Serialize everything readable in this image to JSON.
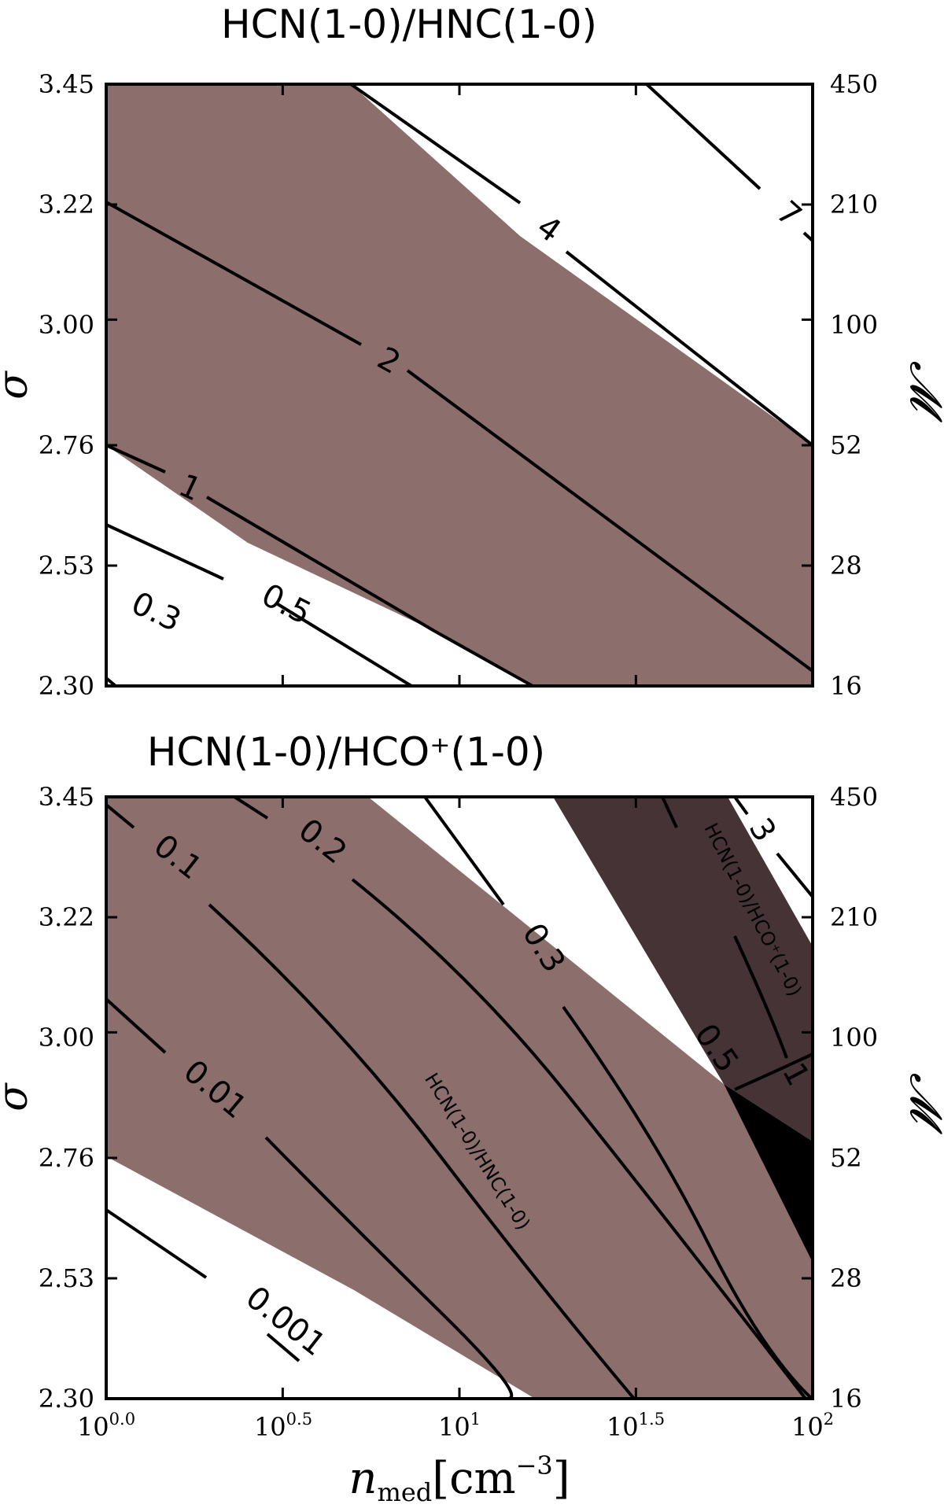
{
  "chart_data": [
    {
      "type": "contour",
      "title": "HCN(1-0)/HNC(1-0)",
      "xlabel": "",
      "ylabel": "σ",
      "y2label": "𝓜",
      "x_axis": {
        "scale": "log",
        "range": [
          1,
          100
        ],
        "ticks": [
          1,
          3.16,
          10,
          31.6,
          100
        ],
        "tick_labels": [],
        "unit": "cm^-3"
      },
      "y_axis": {
        "range": [
          2.3,
          3.45
        ],
        "ticks": [
          2.3,
          2.53,
          2.76,
          3.0,
          3.22,
          3.45
        ],
        "tick_labels": [
          "2.30",
          "2.53",
          "2.76",
          "3.00",
          "3.22",
          "3.45"
        ]
      },
      "y2_axis": {
        "tick_labels": [
          "16",
          "28",
          "52",
          "100",
          "210",
          "450"
        ]
      },
      "shaded_region": {
        "between_levels": [
          1,
          4
        ],
        "color": "#8c6e6d"
      },
      "contours": [
        {
          "level": 0.3,
          "label": "0.3",
          "points": [
            [
              1.0,
              2.31
            ],
            [
              1.08,
              2.3
            ]
          ]
        },
        {
          "level": 0.5,
          "label": "0.5",
          "points": [
            [
              1.0,
              2.6
            ],
            [
              3.16,
              2.3
            ]
          ]
        },
        {
          "level": 1,
          "label": "1",
          "points": [
            [
              1.0,
              2.76
            ],
            [
              5.6,
              2.52
            ],
            [
              10.0,
              2.44
            ],
            [
              17.8,
              2.3
            ]
          ]
        },
        {
          "level": 2,
          "label": "2",
          "points": [
            [
              1.0,
              3.22
            ],
            [
              100.0,
              2.33
            ]
          ]
        },
        {
          "level": 4,
          "label": "4",
          "points": [
            [
              10.0,
              3.45
            ],
            [
              20.0,
              3.3
            ],
            [
              100.0,
              2.76
            ]
          ]
        },
        {
          "level": 7,
          "label": "7",
          "points": [
            [
              42.2,
              3.45
            ],
            [
              100.0,
              3.15
            ]
          ]
        }
      ]
    },
    {
      "type": "contour",
      "title": "HCN(1-0)/HCO⁺(1-0)",
      "xlabel": "n_med[cm⁻³]",
      "xlabel_base": "n",
      "xlabel_sub": "med",
      "xlabel_unit": "[cm",
      "xlabel_exp": "−3",
      "xlabel_close": "]",
      "ylabel": "σ",
      "y2label": "𝓜",
      "x_axis": {
        "scale": "log",
        "range": [
          1,
          100
        ],
        "ticks": [
          1,
          3.16,
          10,
          31.6,
          100
        ],
        "tick_labels": [
          {
            "base": "10",
            "exp": "0.0"
          },
          {
            "base": "10",
            "exp": "0.5"
          },
          {
            "base": "10",
            "exp": "1"
          },
          {
            "base": "10",
            "exp": "1.5"
          },
          {
            "base": "10",
            "exp": "2"
          }
        ]
      },
      "y_axis": {
        "range": [
          2.3,
          3.45
        ],
        "ticks": [
          2.3,
          2.53,
          2.76,
          3.0,
          3.22,
          3.45
        ],
        "tick_labels": [
          "2.30",
          "2.53",
          "2.76",
          "3.00",
          "3.22",
          "3.45"
        ]
      },
      "y2_axis": {
        "tick_labels": [
          "16",
          "28",
          "52",
          "100",
          "210",
          "450"
        ]
      },
      "shaded_regions": [
        {
          "name": "HCN(1-0)/HNC(1-0)",
          "color": "#8c6e6d"
        },
        {
          "name": "HCN(1-0)/HCO⁺(1-0)",
          "color": "#453335"
        },
        {
          "name": "overlap",
          "color": "#000000"
        }
      ],
      "contours": [
        {
          "level": 0.001,
          "label": "0.001",
          "points": [
            [
              1.0,
              2.66
            ],
            [
              3.16,
              2.46
            ],
            [
              6.3,
              2.35
            ],
            [
              9.0,
              2.3
            ]
          ]
        },
        {
          "level": 0.01,
          "label": "0.01",
          "points": [
            [
              1.0,
              3.08
            ],
            [
              3.16,
              2.83
            ],
            [
              6.3,
              2.6
            ],
            [
              10.0,
              2.45
            ],
            [
              13.3,
              2.3
            ]
          ]
        },
        {
          "level": 0.1,
          "label": "0.1",
          "points": [
            [
              1.0,
              3.44
            ],
            [
              3.16,
              3.18
            ],
            [
              10.0,
              2.78
            ],
            [
              20.0,
              2.5
            ],
            [
              30.0,
              2.3
            ]
          ]
        },
        {
          "level": 0.2,
          "label": "0.2",
          "points": [
            [
              2.37,
              3.45
            ],
            [
              10.0,
              3.04
            ],
            [
              31.6,
              2.62
            ],
            [
              54.0,
              2.3
            ]
          ]
        },
        {
          "level": 0.3,
          "label": "0.3",
          "points": [
            [
              7.5,
              3.45
            ],
            [
              17.8,
              3.19
            ],
            [
              31.6,
              2.98
            ],
            [
              60.0,
              2.71
            ],
            [
              96.0,
              2.3
            ]
          ]
        },
        {
          "level": 0.5,
          "label": "0.5",
          "points": [
            [
              38.0,
              3.05
            ],
            [
              50.0,
              2.98
            ],
            [
              70.0,
              2.88
            ],
            [
              100.0,
              2.75
            ]
          ]
        },
        {
          "level": 1,
          "label": "1",
          "points": [
            [
              31.6,
              3.45
            ],
            [
              50.0,
              3.22
            ],
            [
              75.0,
              3.0
            ],
            [
              100.0,
              2.82
            ]
          ]
        },
        {
          "level": 3,
          "label": "3",
          "points": [
            [
              75.0,
              3.45
            ],
            [
              100.0,
              3.28
            ]
          ]
        }
      ]
    }
  ]
}
